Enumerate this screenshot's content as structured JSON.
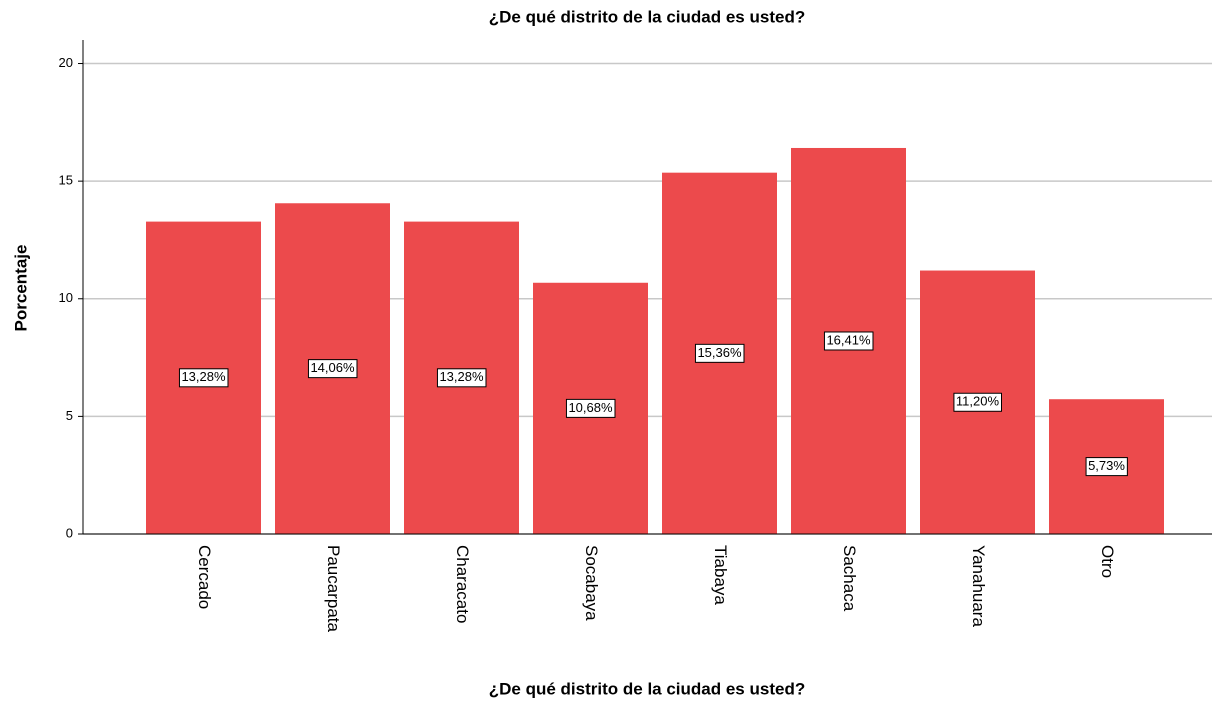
{
  "chart_data": {
    "type": "bar",
    "title": "¿De qué distrito de la ciudad es usted?",
    "x_label": "¿De qué distrito de la ciudad es usted?",
    "y_label": "Porcentaje",
    "categories": [
      "Cercado",
      "Paucarpata",
      "Characato",
      "Socabaya",
      "Tiabaya",
      "Sachaca",
      "Yanahuara",
      "Otro"
    ],
    "values": [
      13.28,
      14.06,
      13.28,
      10.68,
      15.36,
      16.41,
      11.2,
      5.73
    ],
    "value_labels": [
      "13,28%",
      "14,06%",
      "13,28%",
      "10,68%",
      "15,36%",
      "16,41%",
      "11,20%",
      "5,73%"
    ],
    "color": "#ec4a4c",
    "ylim": [
      0,
      21
    ],
    "yticks": [
      0,
      5,
      10,
      15,
      20
    ],
    "grid": true
  }
}
